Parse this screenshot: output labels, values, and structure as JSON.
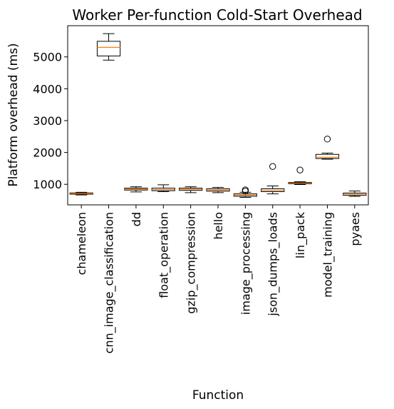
{
  "chart_data": {
    "type": "boxplot",
    "title": "Worker Per-function Cold-Start Overhead",
    "xlabel": "Function",
    "ylabel": "Platform overhead (ms)",
    "ylim": [
      355,
      5980
    ],
    "yticks": [
      1000,
      2000,
      3000,
      4000,
      5000
    ],
    "grid": false,
    "colors": {
      "box": "#000000",
      "median": "#ff7f0e",
      "outlier": "#000000"
    },
    "categories": [
      "chameleon",
      "cnn_image_classification",
      "dd",
      "float_operation",
      "gzip_compression",
      "hello",
      "image_processing",
      "json_dumps_loads",
      "lin_pack",
      "model_training",
      "pyaes"
    ],
    "boxes": [
      {
        "name": "chameleon",
        "whislo": 665,
        "q1": 690,
        "med": 710,
        "q3": 730,
        "whishi": 750,
        "fliers": []
      },
      {
        "name": "cnn_image_classification",
        "whislo": 4900,
        "q1": 5030,
        "med": 5300,
        "q3": 5490,
        "whishi": 5730,
        "fliers": []
      },
      {
        "name": "dd",
        "whislo": 760,
        "q1": 820,
        "med": 850,
        "q3": 880,
        "whishi": 925,
        "fliers": []
      },
      {
        "name": "float_operation",
        "whislo": 770,
        "q1": 800,
        "med": 835,
        "q3": 880,
        "whishi": 985,
        "fliers": []
      },
      {
        "name": "gzip_compression",
        "whislo": 740,
        "q1": 810,
        "med": 845,
        "q3": 880,
        "whishi": 925,
        "fliers": []
      },
      {
        "name": "hello",
        "whislo": 740,
        "q1": 785,
        "med": 820,
        "q3": 860,
        "whishi": 905,
        "fliers": []
      },
      {
        "name": "image_processing",
        "whislo": 590,
        "q1": 625,
        "med": 660,
        "q3": 700,
        "whishi": 750,
        "fliers": [
          785,
          825
        ]
      },
      {
        "name": "json_dumps_loads",
        "whislo": 700,
        "q1": 770,
        "med": 810,
        "q3": 860,
        "whishi": 950,
        "fliers": [
          1560
        ]
      },
      {
        "name": "lin_pack",
        "whislo": 995,
        "q1": 1020,
        "med": 1040,
        "q3": 1060,
        "whishi": 1080,
        "fliers": [
          1450
        ]
      },
      {
        "name": "model_training",
        "whislo": 1790,
        "q1": 1810,
        "med": 1850,
        "q3": 1940,
        "whishi": 1980,
        "fliers": [
          2420
        ]
      },
      {
        "name": "pyaes",
        "whislo": 620,
        "q1": 655,
        "med": 690,
        "q3": 725,
        "whishi": 790,
        "fliers": []
      }
    ]
  }
}
